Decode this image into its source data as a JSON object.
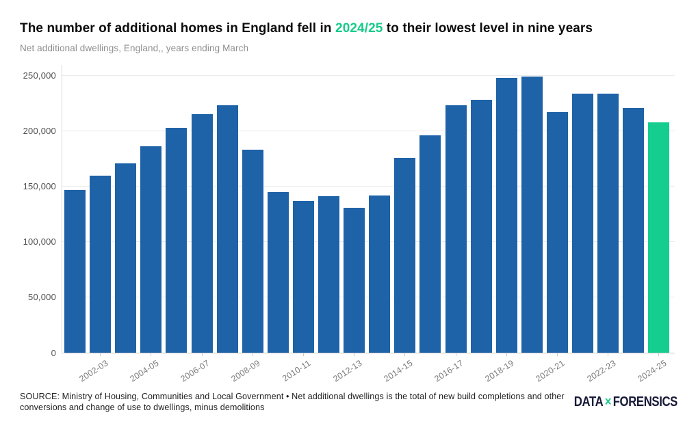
{
  "header": {
    "title_prefix": "The number of additional homes in England fell in ",
    "title_highlight": "2024/25",
    "title_suffix": " to their lowest level in nine years",
    "subtitle": "Net additional dwellings, England,, years ending March"
  },
  "chart_data": {
    "type": "bar",
    "title": "The number of additional homes in England fell in 2024/25 to their lowest level in nine years",
    "subtitle": "Net additional dwellings, England,, years ending March",
    "xlabel": "",
    "ylabel": "",
    "categories": [
      "2001-02",
      "2002-03",
      "2003-04",
      "2004-05",
      "2005-06",
      "2006-07",
      "2007-08",
      "2008-09",
      "2009-10",
      "2010-11",
      "2011-12",
      "2012-13",
      "2013-14",
      "2014-15",
      "2015-16",
      "2016-17",
      "2017-18",
      "2018-19",
      "2019-20",
      "2020-21",
      "2021-22",
      "2022-23",
      "2023-24",
      "2024-25"
    ],
    "values": [
      147000,
      160000,
      171000,
      186000,
      203000,
      215000,
      223000,
      183000,
      145000,
      137000,
      141000,
      131000,
      142000,
      176000,
      196000,
      223000,
      228000,
      248000,
      249000,
      217000,
      234000,
      234000,
      221000,
      208000
    ],
    "x_tick_labels": [
      "2002-03",
      "2004-05",
      "2006-07",
      "2008-09",
      "2010-11",
      "2012-13",
      "2014-15",
      "2016-17",
      "2018-19",
      "2020-21",
      "2022-23",
      "2024-25"
    ],
    "y_ticks": [
      0,
      50000,
      100000,
      150000,
      200000,
      250000
    ],
    "y_tick_labels": [
      "0",
      "50,000",
      "100,000",
      "150,000",
      "200,000",
      "250,000"
    ],
    "ylim": [
      0,
      250000
    ],
    "grid": "horizontal",
    "legend": "none",
    "highlight_category": "2024-25",
    "bar_color": "#1E62A8",
    "highlight_color": "#14CD8E"
  },
  "footer": {
    "source_text": "SOURCE: Ministry of Housing, Communities and Local Government • Net additional dwellings is the total of new build completions and other conversions and change of use to dwellings, minus demolitions",
    "logo": {
      "part1": "DATA",
      "x_mark": "×",
      "part2": "FORENSICS"
    }
  }
}
